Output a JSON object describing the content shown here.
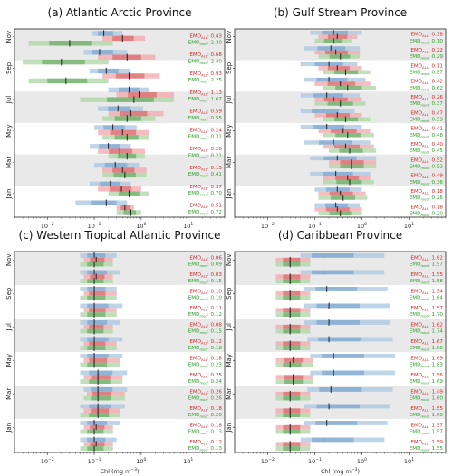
{
  "colors": {
    "band": "#e9e9e9",
    "blue": "#a8c6e2",
    "blue_dark": "#5b8fc2",
    "red": "#f1a7a9",
    "red_dark": "#c93a3f",
    "green": "#a9d6a0",
    "green_dark": "#3f8f3a",
    "text_red": "#d62728",
    "text_green": "#2ca02c"
  },
  "labels": {
    "emd_prefix": "EMD",
    "sub_all": "ALL",
    "sub_mod": "mod",
    "xlabel_prefix": "Chl (mg m",
    "xlabel_exp": "−3",
    "xlabel_suffix": ")"
  },
  "chart_data": [
    {
      "type": "boxplot",
      "title": "(a) Atlantic Arctic Province",
      "xscale": "log",
      "xlim": [
        0.002,
        60
      ],
      "xticks": [
        "10",
        "10",
        "10",
        "10"
      ],
      "xtick_exp": [
        "−2",
        "−1",
        "0",
        "1"
      ],
      "months": [
        "Nov",
        "Sep",
        "Jul",
        "May",
        "Mar",
        "Jan"
      ],
      "emd_all": [
        "0.43",
        "0.68",
        "0.93",
        "1.13",
        "0.59",
        "0.24",
        "0.28",
        "0.15",
        "0.37",
        "0.51"
      ],
      "emd_mod": [
        "2.30",
        "2.40",
        "2.25",
        "1.67",
        "0.55",
        "0.31",
        "0.21",
        "0.41",
        "0.70",
        "0.72"
      ],
      "sat_median": [
        0.16,
        0.13,
        0.18,
        0.55,
        0.32,
        0.25,
        0.2,
        0.28,
        0.22,
        0.18
      ],
      "sat_range": [
        [
          0.09,
          0.4
        ],
        [
          0.06,
          0.5
        ],
        [
          0.08,
          0.6
        ],
        [
          0.2,
          1.5
        ],
        [
          0.12,
          1.1
        ],
        [
          0.1,
          0.8
        ],
        [
          0.08,
          0.6
        ],
        [
          0.1,
          0.9
        ],
        [
          0.08,
          0.6
        ],
        [
          0.04,
          0.5
        ]
      ],
      "all_median": [
        0.4,
        0.5,
        0.55,
        0.9,
        0.6,
        0.4,
        0.35,
        0.4,
        0.38,
        0.45
      ],
      "all_range": [
        [
          0.15,
          1.2
        ],
        [
          0.12,
          2.0
        ],
        [
          0.15,
          2.5
        ],
        [
          0.3,
          5.0
        ],
        [
          0.2,
          3.0
        ],
        [
          0.12,
          1.5
        ],
        [
          0.12,
          1.2
        ],
        [
          0.15,
          1.3
        ],
        [
          0.12,
          1.0
        ],
        [
          0.3,
          0.7
        ]
      ],
      "mod_median": [
        0.03,
        0.02,
        0.025,
        0.7,
        0.5,
        0.5,
        0.5,
        0.45,
        0.55,
        0.6
      ],
      "mod_range": [
        [
          0.004,
          0.25
        ],
        [
          0.003,
          0.2
        ],
        [
          0.004,
          0.2
        ],
        [
          0.05,
          5.0
        ],
        [
          0.15,
          2.0
        ],
        [
          0.15,
          1.5
        ],
        [
          0.2,
          1.2
        ],
        [
          0.15,
          1.3
        ],
        [
          0.2,
          1.5
        ],
        [
          0.3,
          1.0
        ]
      ]
    },
    {
      "type": "boxplot",
      "title": "(b) Gulf Stream Province",
      "xscale": "log",
      "xlim": [
        0.002,
        60
      ],
      "xticks": [
        "10",
        "10",
        "10",
        "10"
      ],
      "xtick_exp": [
        "−2",
        "−1",
        "0",
        "1"
      ],
      "months": [
        "Nov",
        "Sep",
        "Jul",
        "May",
        "Mar",
        "Jan"
      ],
      "emd_all": [
        "0.38",
        "0.22",
        "0.11",
        "0.42",
        "0.26",
        "0.47",
        "0.41",
        "0.40",
        "0.52",
        "0.49",
        "0.18",
        "0.18"
      ],
      "emd_mod": [
        "0.10",
        "0.29",
        "0.57",
        "0.62",
        "0.37",
        "0.59",
        "0.48",
        "0.45",
        "0.52",
        "0.36",
        "0.26",
        "0.20"
      ],
      "sat_median": [
        0.25,
        0.22,
        0.2,
        0.2,
        0.18,
        0.15,
        0.18,
        0.25,
        0.3,
        0.28,
        0.3,
        0.28
      ],
      "sat_range": [
        [
          0.08,
          1.0
        ],
        [
          0.06,
          0.9
        ],
        [
          0.05,
          0.8
        ],
        [
          0.06,
          1.2
        ],
        [
          0.05,
          0.9
        ],
        [
          0.05,
          0.7
        ],
        [
          0.05,
          1.0
        ],
        [
          0.06,
          1.5
        ],
        [
          0.08,
          2.0
        ],
        [
          0.08,
          1.5
        ],
        [
          0.1,
          1.0
        ],
        [
          0.1,
          0.9
        ]
      ],
      "all_median": [
        0.3,
        0.28,
        0.3,
        0.35,
        0.25,
        0.3,
        0.4,
        0.45,
        0.6,
        0.5,
        0.35,
        0.3
      ],
      "all_range": [
        [
          0.12,
          0.8
        ],
        [
          0.1,
          0.9
        ],
        [
          0.12,
          1.0
        ],
        [
          0.1,
          1.5
        ],
        [
          0.1,
          1.0
        ],
        [
          0.1,
          1.0
        ],
        [
          0.12,
          1.5
        ],
        [
          0.15,
          1.8
        ],
        [
          0.2,
          2.0
        ],
        [
          0.15,
          1.5
        ],
        [
          0.12,
          1.2
        ],
        [
          0.1,
          1.0
        ]
      ],
      "mod_median": [
        0.25,
        0.35,
        0.45,
        0.5,
        0.35,
        0.45,
        0.5,
        0.55,
        0.6,
        0.55,
        0.4,
        0.35
      ],
      "mod_range": [
        [
          0.1,
          0.6
        ],
        [
          0.12,
          0.9
        ],
        [
          0.15,
          1.5
        ],
        [
          0.15,
          2.0
        ],
        [
          0.1,
          1.2
        ],
        [
          0.15,
          1.5
        ],
        [
          0.15,
          1.8
        ],
        [
          0.2,
          2.0
        ],
        [
          0.2,
          2.0
        ],
        [
          0.15,
          1.8
        ],
        [
          0.12,
          1.3
        ],
        [
          0.12,
          1.0
        ]
      ]
    },
    {
      "type": "boxplot",
      "title": "(c) Western Tropical Atlantic Province",
      "xscale": "log",
      "xlim": [
        0.002,
        60
      ],
      "xticks": [
        "10",
        "10",
        "10",
        "10"
      ],
      "xtick_exp": [
        "−2",
        "−1",
        "0",
        "1"
      ],
      "months": [
        "Nov",
        "Sep",
        "Jul",
        "May",
        "Mar",
        "Jan"
      ],
      "emd_all": [
        "0.06",
        "0.03",
        "0.10",
        "0.11",
        "0.08",
        "0.12",
        "0.18",
        "0.25",
        "0.26",
        "0.18",
        "0.18",
        "0.12"
      ],
      "emd_mod": [
        "0.09",
        "0.15",
        "0.10",
        "0.12",
        "0.15",
        "0.18",
        "0.23",
        "0.24",
        "0.26",
        "0.20",
        "0.13",
        "0.13"
      ],
      "sat_median": [
        0.1,
        0.1,
        0.1,
        0.1,
        0.1,
        0.1,
        0.1,
        0.12,
        0.12,
        0.12,
        0.1,
        0.1
      ],
      "sat_range": [
        [
          0.05,
          0.3
        ],
        [
          0.05,
          0.35
        ],
        [
          0.05,
          0.3
        ],
        [
          0.05,
          0.4
        ],
        [
          0.05,
          0.35
        ],
        [
          0.05,
          0.4
        ],
        [
          0.05,
          0.4
        ],
        [
          0.05,
          0.5
        ],
        [
          0.06,
          0.5
        ],
        [
          0.05,
          0.45
        ],
        [
          0.05,
          0.35
        ],
        [
          0.05,
          0.3
        ]
      ],
      "all_median": [
        0.11,
        0.11,
        0.1,
        0.1,
        0.1,
        0.1,
        0.1,
        0.12,
        0.12,
        0.12,
        0.11,
        0.11
      ],
      "all_range": [
        [
          0.06,
          0.25
        ],
        [
          0.06,
          0.25
        ],
        [
          0.06,
          0.3
        ],
        [
          0.06,
          0.3
        ],
        [
          0.06,
          0.25
        ],
        [
          0.06,
          0.3
        ],
        [
          0.06,
          0.35
        ],
        [
          0.06,
          0.4
        ],
        [
          0.07,
          0.45
        ],
        [
          0.06,
          0.35
        ],
        [
          0.06,
          0.25
        ],
        [
          0.06,
          0.25
        ]
      ],
      "mod_median": [
        0.1,
        0.1,
        0.1,
        0.1,
        0.1,
        0.1,
        0.1,
        0.12,
        0.12,
        0.12,
        0.1,
        0.1
      ],
      "mod_range": [
        [
          0.05,
          0.25
        ],
        [
          0.05,
          0.25
        ],
        [
          0.05,
          0.3
        ],
        [
          0.05,
          0.3
        ],
        [
          0.05,
          0.25
        ],
        [
          0.05,
          0.3
        ],
        [
          0.05,
          0.35
        ],
        [
          0.05,
          0.4
        ],
        [
          0.06,
          0.45
        ],
        [
          0.05,
          0.35
        ],
        [
          0.05,
          0.25
        ],
        [
          0.05,
          0.25
        ]
      ]
    },
    {
      "type": "boxplot",
      "title": "(d) Caribbean Province",
      "xscale": "log",
      "xlim": [
        0.002,
        60
      ],
      "xticks": [
        "10",
        "10",
        "10",
        "10"
      ],
      "xtick_exp": [
        "−2",
        "−1",
        "0",
        "1"
      ],
      "months": [
        "Nov",
        "Sep",
        "Jul",
        "May",
        "Mar",
        "Jan"
      ],
      "emd_all": [
        "1.62",
        "1.55",
        "1.54",
        "1.57",
        "1.62",
        "1.67",
        "1.69",
        "1.56",
        "1.49",
        "1.55",
        "1.57",
        "1.59"
      ],
      "emd_mod": [
        "1.57",
        "1.58",
        "1.64",
        "1.70",
        "1.74",
        "1.80",
        "1.83",
        "1.69",
        "1.60",
        "1.60",
        "1.57",
        "1.55"
      ],
      "sat_median": [
        0.15,
        0.15,
        0.18,
        0.2,
        0.2,
        0.2,
        0.25,
        0.25,
        0.22,
        0.2,
        0.18,
        0.15
      ],
      "sat_range": [
        [
          0.05,
          3.0
        ],
        [
          0.05,
          3.0
        ],
        [
          0.06,
          3.5
        ],
        [
          0.06,
          4.0
        ],
        [
          0.06,
          4.0
        ],
        [
          0.07,
          4.5
        ],
        [
          0.08,
          5.0
        ],
        [
          0.08,
          5.0
        ],
        [
          0.07,
          4.5
        ],
        [
          0.06,
          4.0
        ],
        [
          0.06,
          3.5
        ],
        [
          0.05,
          3.0
        ]
      ],
      "all_median": [
        0.03,
        0.03,
        0.03,
        0.03,
        0.03,
        0.03,
        0.035,
        0.035,
        0.03,
        0.03,
        0.03,
        0.03
      ],
      "all_range": [
        [
          0.015,
          0.08
        ],
        [
          0.015,
          0.08
        ],
        [
          0.015,
          0.08
        ],
        [
          0.015,
          0.08
        ],
        [
          0.015,
          0.08
        ],
        [
          0.015,
          0.08
        ],
        [
          0.015,
          0.09
        ],
        [
          0.015,
          0.09
        ],
        [
          0.015,
          0.08
        ],
        [
          0.015,
          0.08
        ],
        [
          0.015,
          0.08
        ],
        [
          0.015,
          0.08
        ]
      ],
      "mod_median": [
        0.03,
        0.03,
        0.03,
        0.03,
        0.03,
        0.03,
        0.03,
        0.035,
        0.03,
        0.03,
        0.03,
        0.03
      ],
      "mod_range": [
        [
          0.015,
          0.08
        ],
        [
          0.015,
          0.08
        ],
        [
          0.015,
          0.08
        ],
        [
          0.015,
          0.08
        ],
        [
          0.015,
          0.08
        ],
        [
          0.015,
          0.08
        ],
        [
          0.015,
          0.09
        ],
        [
          0.015,
          0.09
        ],
        [
          0.015,
          0.08
        ],
        [
          0.015,
          0.08
        ],
        [
          0.015,
          0.08
        ],
        [
          0.015,
          0.08
        ]
      ]
    }
  ]
}
